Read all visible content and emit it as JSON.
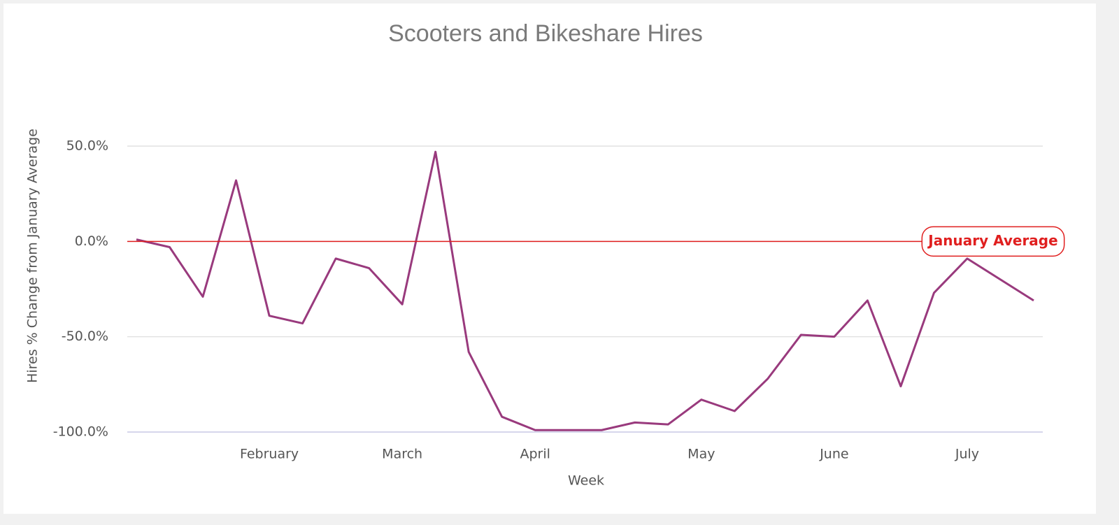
{
  "chart_data": {
    "type": "line",
    "title": "Scooters and Bikeshare Hires",
    "x_label": "Week",
    "y_label": "Hires % Change from January Average",
    "categories": [
      null,
      null,
      null,
      null,
      "February",
      null,
      null,
      null,
      "March",
      null,
      null,
      null,
      "April",
      null,
      null,
      null,
      null,
      "May",
      null,
      null,
      null,
      "June",
      null,
      null,
      null,
      "July",
      null,
      null
    ],
    "series": [
      {
        "name": "Hires",
        "color": "#993a7d",
        "values": [
          1,
          -3,
          -29,
          32,
          -39,
          -43,
          -9,
          -14,
          -33,
          47,
          -58,
          -92,
          -99,
          -99,
          -99,
          -95,
          -96,
          -83,
          -89,
          -72,
          -49,
          -50,
          -31,
          -76,
          -27,
          -9,
          -20,
          -31
        ]
      }
    ],
    "ylim": [
      -100,
      50
    ],
    "yticks": [
      {
        "value": -100,
        "label": "-100.0%"
      },
      {
        "value": -50,
        "label": "-50.0%"
      },
      {
        "value": 0,
        "label": "0.0%"
      },
      {
        "value": 50,
        "label": "50.0%"
      }
    ],
    "grid": true,
    "reference_line": {
      "value": 0,
      "label": "January Average",
      "color": "#e01f1f"
    }
  }
}
